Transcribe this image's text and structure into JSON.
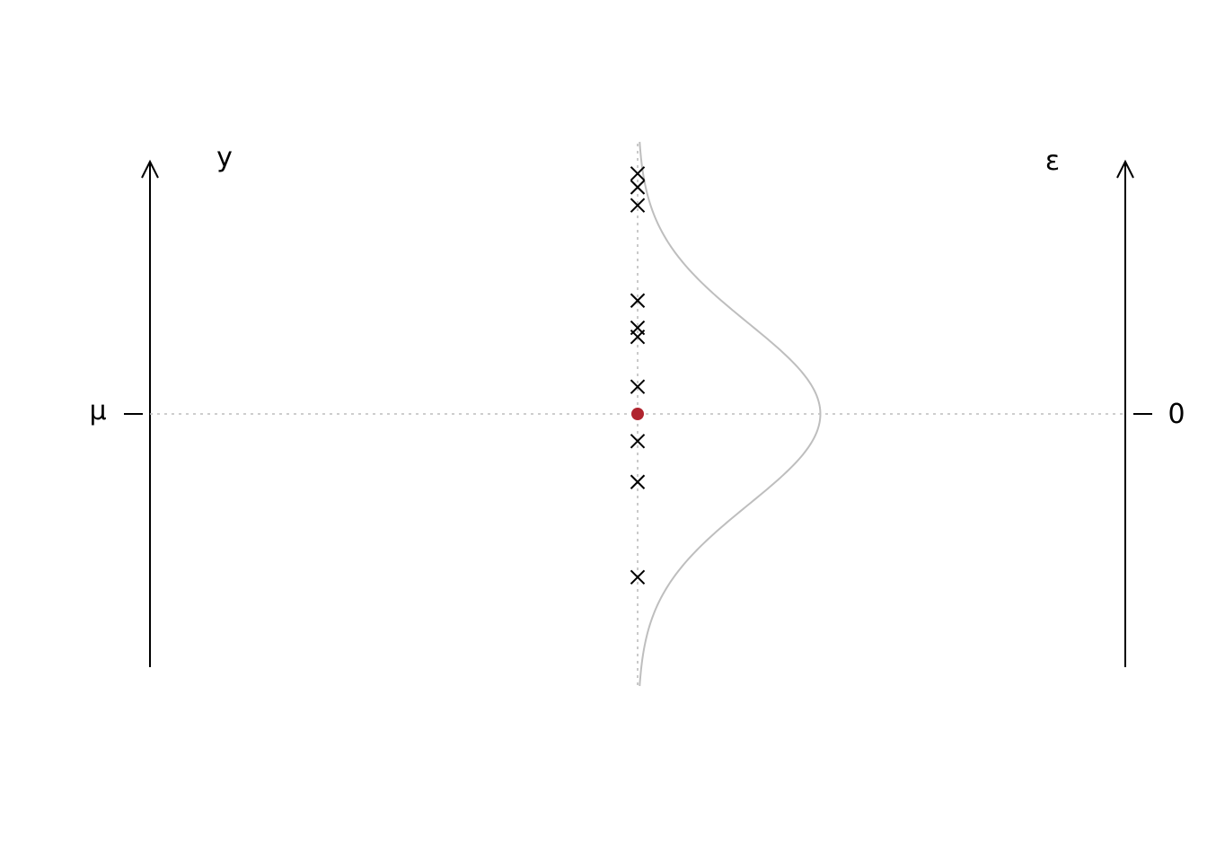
{
  "labels": {
    "y_axis": "y",
    "eps_axis": "ε",
    "mu_tick": "μ",
    "zero_tick": "0"
  },
  "colors": {
    "mean_marker": "#b0242f",
    "density_curve": "#bebebe",
    "guide_lines": "#bdbdbd",
    "axes": "#000000"
  },
  "diagram": {
    "mean": 0,
    "sd": 1,
    "range": [
      -3,
      3
    ],
    "observations": [
      2.65,
      2.5,
      2.3,
      1.25,
      0.95,
      0.85,
      0.3,
      -0.3,
      -0.75,
      -1.8
    ]
  }
}
